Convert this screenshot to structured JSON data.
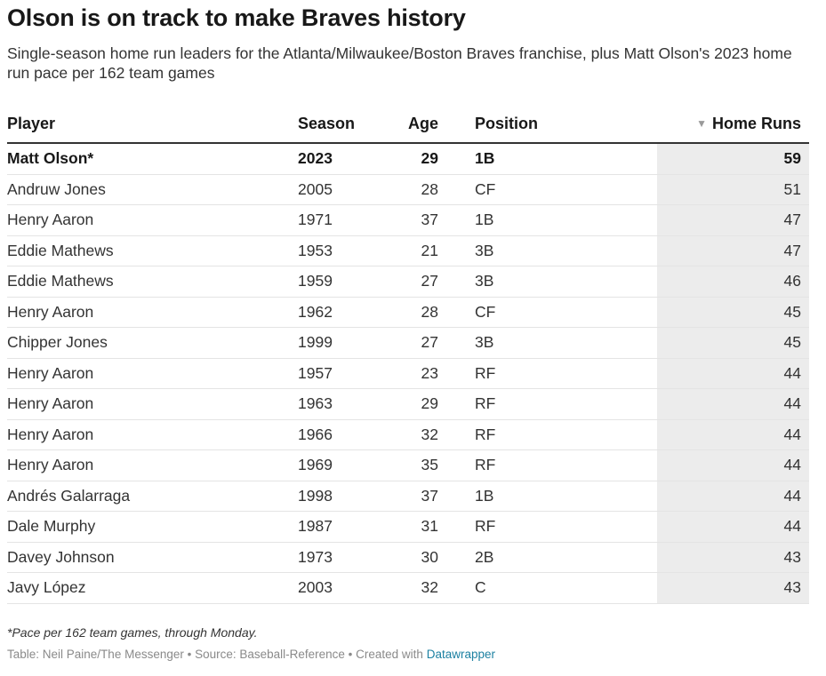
{
  "title": "Olson is on track to make Braves history",
  "subtitle": "Single-season home run leaders for the Atlanta/Milwaukee/Boston Braves franchise, plus Matt Olson's 2023 home run pace per 162 team games",
  "columns": [
    "Player",
    "Season",
    "Age",
    "Position",
    "Home Runs"
  ],
  "sort_icon": "sort-descending-icon",
  "highlight_color": "#ececec",
  "chart_data": {
    "type": "table",
    "title": "Olson is on track to make Braves history",
    "columns": [
      "Player",
      "Season",
      "Age",
      "Position",
      "Home Runs"
    ],
    "rows": [
      {
        "player": "Matt Olson*",
        "season": "2023",
        "age": "29",
        "position": "1B",
        "hr": "59"
      },
      {
        "player": "Andruw Jones",
        "season": "2005",
        "age": "28",
        "position": "CF",
        "hr": "51"
      },
      {
        "player": "Henry Aaron",
        "season": "1971",
        "age": "37",
        "position": "1B",
        "hr": "47"
      },
      {
        "player": "Eddie Mathews",
        "season": "1953",
        "age": "21",
        "position": "3B",
        "hr": "47"
      },
      {
        "player": "Eddie Mathews",
        "season": "1959",
        "age": "27",
        "position": "3B",
        "hr": "46"
      },
      {
        "player": "Henry Aaron",
        "season": "1962",
        "age": "28",
        "position": "CF",
        "hr": "45"
      },
      {
        "player": "Chipper Jones",
        "season": "1999",
        "age": "27",
        "position": "3B",
        "hr": "45"
      },
      {
        "player": "Henry Aaron",
        "season": "1957",
        "age": "23",
        "position": "RF",
        "hr": "44"
      },
      {
        "player": "Henry Aaron",
        "season": "1963",
        "age": "29",
        "position": "RF",
        "hr": "44"
      },
      {
        "player": "Henry Aaron",
        "season": "1966",
        "age": "32",
        "position": "RF",
        "hr": "44"
      },
      {
        "player": "Henry Aaron",
        "season": "1969",
        "age": "35",
        "position": "RF",
        "hr": "44"
      },
      {
        "player": "Andrés Galarraga",
        "season": "1998",
        "age": "37",
        "position": "1B",
        "hr": "44"
      },
      {
        "player": "Dale Murphy",
        "season": "1987",
        "age": "31",
        "position": "RF",
        "hr": "44"
      },
      {
        "player": "Davey Johnson",
        "season": "1973",
        "age": "30",
        "position": "2B",
        "hr": "43"
      },
      {
        "player": "Javy López",
        "season": "2003",
        "age": "32",
        "position": "C",
        "hr": "43"
      }
    ]
  },
  "note": "*Pace per 162 team games, through Monday.",
  "source_prefix": "Table: Neil Paine/The Messenger • Source: Baseball-Reference • Created with ",
  "source_link": "Datawrapper",
  "link_color": "#1d81a2"
}
